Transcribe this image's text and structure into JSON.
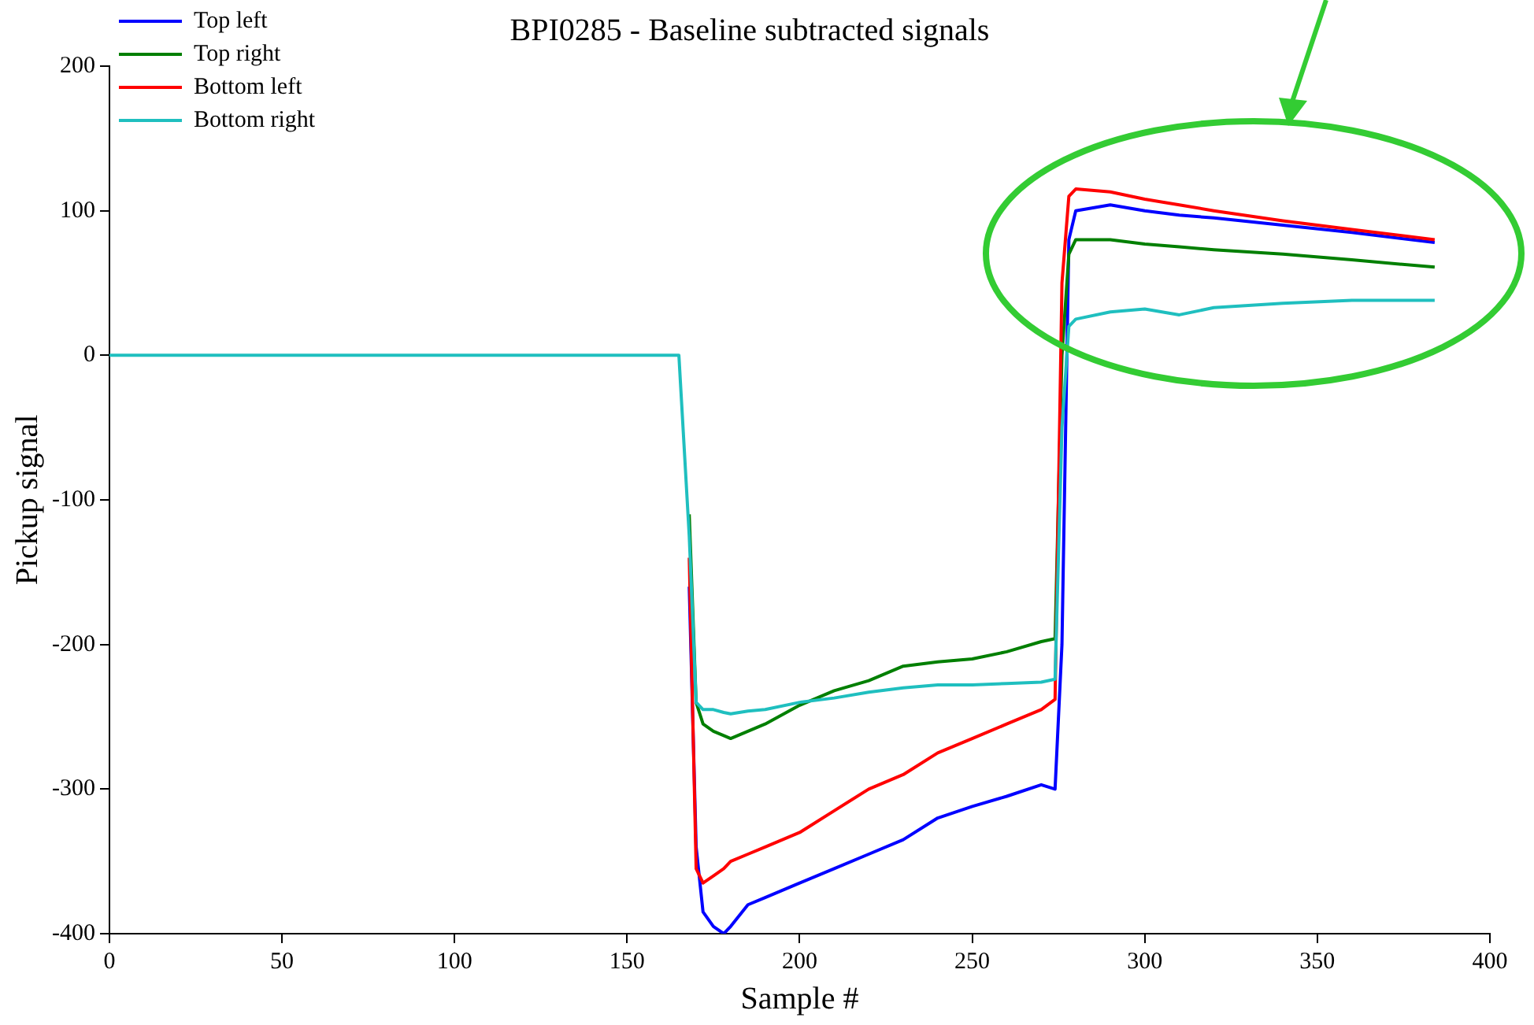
{
  "chart_data": {
    "type": "line",
    "title": "BPI0285 - Baseline subtracted signals",
    "xlabel": "Sample #",
    "ylabel": "Pickup signal",
    "x": [
      0,
      160,
      165,
      168,
      170,
      172,
      175,
      178,
      180,
      185,
      190,
      200,
      210,
      220,
      230,
      240,
      250,
      260,
      270,
      274,
      276,
      278,
      280,
      290,
      300,
      310,
      320,
      340,
      360,
      384
    ],
    "series": [
      {
        "name": "Top left",
        "color": "#0000ff",
        "values": [
          null,
          null,
          null,
          -160,
          -340,
          -385,
          -395,
          -400,
          -395,
          -380,
          -375,
          -365,
          -355,
          -345,
          -335,
          -320,
          -312,
          -305,
          -297,
          -300,
          -200,
          80,
          100,
          104,
          100,
          97,
          95,
          90,
          85,
          78
        ]
      },
      {
        "name": "Top right",
        "color": "#007f00",
        "values": [
          null,
          null,
          null,
          -110,
          -240,
          -255,
          -260,
          -263,
          -265,
          -260,
          -255,
          -242,
          -232,
          -225,
          -215,
          -212,
          -210,
          -205,
          -198,
          -196,
          0,
          70,
          80,
          80,
          77,
          75,
          73,
          70,
          66,
          61
        ]
      },
      {
        "name": "Bottom left",
        "color": "#ff0000",
        "values": [
          null,
          null,
          null,
          -140,
          -355,
          -365,
          -360,
          -355,
          -350,
          -345,
          -340,
          -330,
          -315,
          -300,
          -290,
          -275,
          -265,
          -255,
          -245,
          -238,
          50,
          110,
          115,
          113,
          108,
          104,
          100,
          93,
          87,
          80
        ]
      },
      {
        "name": "Bottom right",
        "color": "#1fbfbf",
        "values": [
          0,
          0,
          0,
          -125,
          -240,
          -245,
          -245,
          -247,
          -248,
          -246,
          -245,
          -240,
          -237,
          -233,
          -230,
          -228,
          -228,
          -227,
          -226,
          -224,
          -50,
          20,
          25,
          30,
          32,
          28,
          33,
          36,
          38,
          38
        ]
      }
    ],
    "xlim": [
      0,
      400
    ],
    "xticks": [
      0,
      50,
      100,
      150,
      200,
      250,
      300,
      350,
      400
    ],
    "ylim": [
      -400,
      200
    ],
    "yticks": [
      -400,
      -300,
      -200,
      -100,
      0,
      100,
      200
    ],
    "grid": false,
    "legend": "top left",
    "marker": "none",
    "line_style": "solid"
  }
}
